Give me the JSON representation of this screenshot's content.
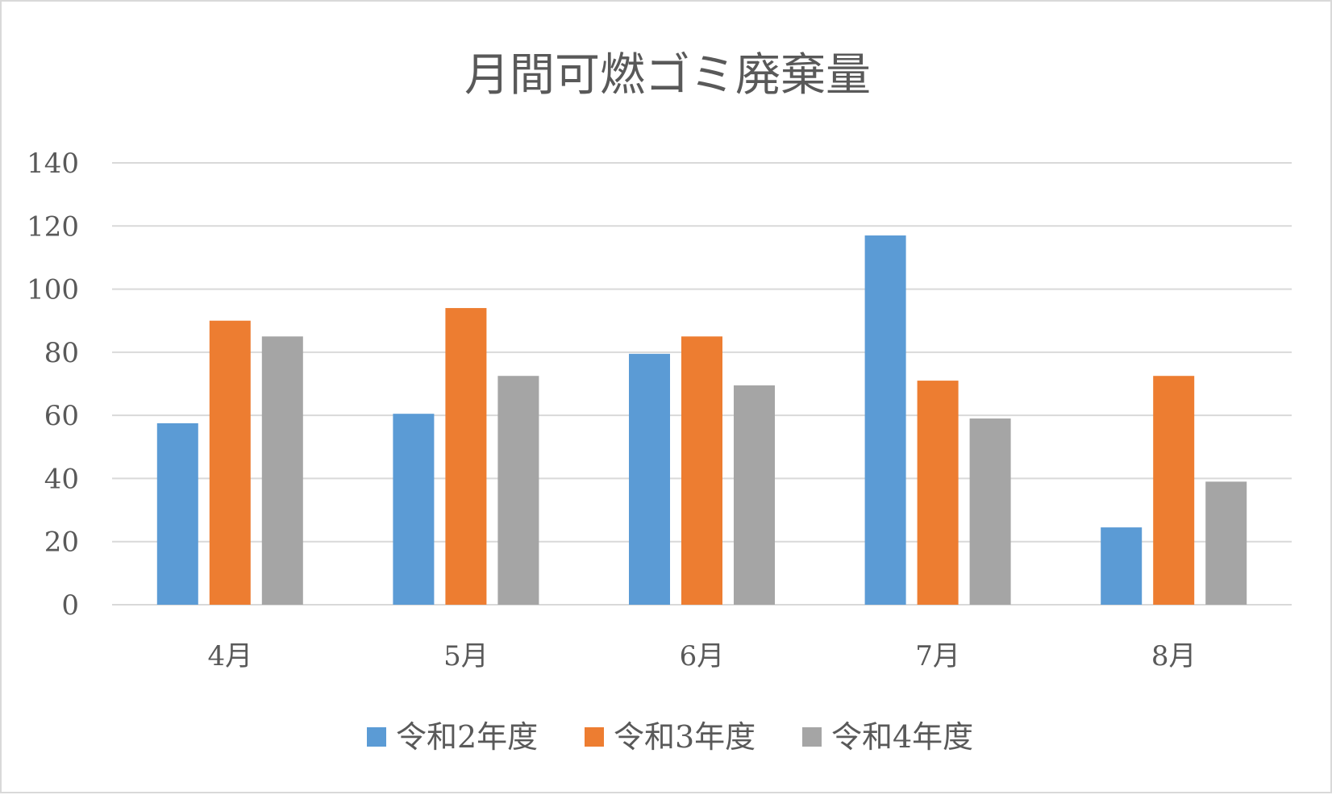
{
  "chart_data": {
    "type": "bar",
    "title": "月間可燃ゴミ廃棄量",
    "categories": [
      "4月",
      "5月",
      "6月",
      "7月",
      "8月"
    ],
    "series": [
      {
        "name": "令和2年度",
        "color": "#5B9BD5",
        "values": [
          57.5,
          60.5,
          79.5,
          117,
          24.5
        ]
      },
      {
        "name": "令和3年度",
        "color": "#ED7D31",
        "values": [
          90,
          94,
          85,
          71,
          72.5
        ]
      },
      {
        "name": "令和4年度",
        "color": "#A5A5A5",
        "values": [
          85,
          72.5,
          69.5,
          59,
          39
        ]
      }
    ],
    "xlabel": "",
    "ylabel": "",
    "ylim": [
      0,
      140
    ],
    "yticks": [
      0,
      20,
      40,
      60,
      80,
      100,
      120,
      140
    ],
    "grid": true,
    "legend_position": "bottom"
  }
}
